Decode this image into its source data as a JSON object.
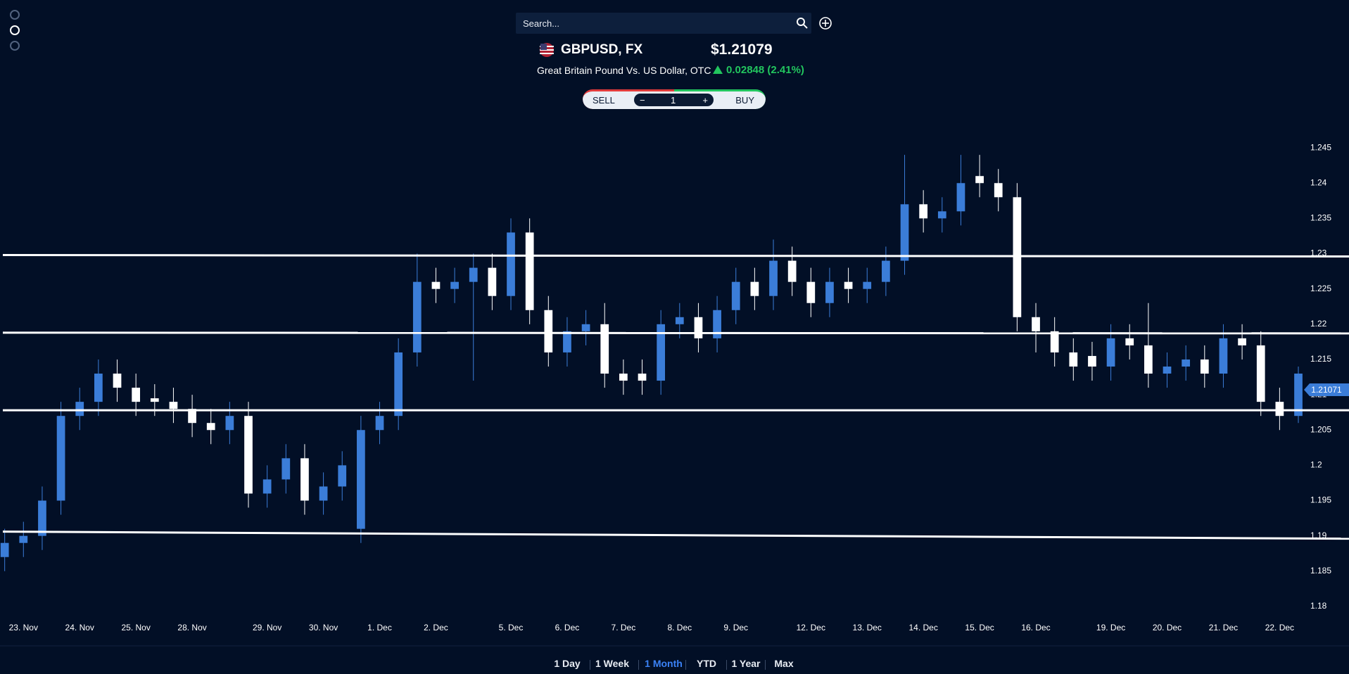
{
  "header": {
    "search_placeholder": "Search...",
    "symbol": "GBPUSD, FX",
    "price": "$1.21079",
    "description": "Great Britain Pound Vs. US Dollar, OTC",
    "change": "0.02848 (2.41%)",
    "sell": "SELL",
    "quantity": "1",
    "buy": "BUY"
  },
  "chart_data": {
    "type": "candlestick",
    "up_color": "#3b7dd8",
    "down_color": "#ffffff",
    "open": [
      1.187,
      1.189,
      1.19,
      1.195,
      1.207,
      1.209,
      1.213,
      1.211,
      1.2095,
      1.209,
      1.208,
      1.206,
      1.205,
      1.207,
      1.196,
      1.198,
      1.201,
      1.195,
      1.197,
      1.191,
      1.205,
      1.207,
      1.216,
      1.226,
      1.225,
      1.226,
      1.228,
      1.224,
      1.233,
      1.222,
      1.216,
      1.219,
      1.22,
      1.213,
      1.213,
      1.212,
      1.22,
      1.221,
      1.218,
      1.222,
      1.226,
      1.224,
      1.229,
      1.226,
      1.223,
      1.226,
      1.225,
      1.226,
      1.229,
      1.237,
      1.235,
      1.236,
      1.241,
      1.24,
      1.238,
      1.221,
      1.219,
      1.216,
      1.2155,
      1.214,
      1.218,
      1.217,
      1.213,
      1.214,
      1.215,
      1.213,
      1.218,
      1.217,
      1.209,
      1.207
    ],
    "high": [
      1.191,
      1.192,
      1.197,
      1.209,
      1.211,
      1.215,
      1.215,
      1.213,
      1.2115,
      1.211,
      1.21,
      1.208,
      1.209,
      1.209,
      1.2,
      1.203,
      1.203,
      1.199,
      1.202,
      1.207,
      1.209,
      1.218,
      1.23,
      1.228,
      1.228,
      1.23,
      1.23,
      1.235,
      1.235,
      1.224,
      1.221,
      1.222,
      1.223,
      1.215,
      1.215,
      1.222,
      1.223,
      1.223,
      1.224,
      1.228,
      1.228,
      1.232,
      1.231,
      1.228,
      1.228,
      1.228,
      1.228,
      1.231,
      1.244,
      1.239,
      1.238,
      1.244,
      1.244,
      1.242,
      1.24,
      1.223,
      1.221,
      1.218,
      1.2175,
      1.22,
      1.22,
      1.223,
      1.216,
      1.217,
      1.217,
      1.22,
      1.22,
      1.219,
      1.211,
      1.214
    ],
    "low": [
      1.185,
      1.187,
      1.188,
      1.193,
      1.205,
      1.207,
      1.209,
      1.207,
      1.207,
      1.206,
      1.204,
      1.203,
      1.203,
      1.194,
      1.194,
      1.196,
      1.193,
      1.193,
      1.195,
      1.189,
      1.203,
      1.205,
      1.214,
      1.223,
      1.223,
      1.212,
      1.222,
      1.222,
      1.22,
      1.214,
      1.214,
      1.217,
      1.211,
      1.21,
      1.21,
      1.21,
      1.218,
      1.216,
      1.216,
      1.22,
      1.222,
      1.222,
      1.224,
      1.221,
      1.221,
      1.223,
      1.223,
      1.224,
      1.227,
      1.233,
      1.233,
      1.234,
      1.238,
      1.236,
      1.219,
      1.216,
      1.214,
      1.212,
      1.212,
      1.212,
      1.215,
      1.211,
      1.211,
      1.212,
      1.211,
      1.211,
      1.215,
      1.207,
      1.205,
      1.206
    ],
    "close": [
      1.189,
      1.19,
      1.195,
      1.207,
      1.209,
      1.213,
      1.211,
      1.209,
      1.209,
      1.208,
      1.206,
      1.205,
      1.207,
      1.196,
      1.198,
      1.201,
      1.195,
      1.197,
      1.2,
      1.205,
      1.207,
      1.216,
      1.226,
      1.225,
      1.226,
      1.228,
      1.224,
      1.233,
      1.222,
      1.216,
      1.219,
      1.22,
      1.213,
      1.212,
      1.212,
      1.22,
      1.221,
      1.218,
      1.222,
      1.226,
      1.224,
      1.229,
      1.226,
      1.223,
      1.226,
      1.225,
      1.226,
      1.229,
      1.237,
      1.235,
      1.236,
      1.24,
      1.24,
      1.238,
      1.221,
      1.219,
      1.216,
      1.214,
      1.214,
      1.218,
      1.217,
      1.213,
      1.214,
      1.215,
      1.213,
      1.218,
      1.217,
      1.209,
      1.207,
      1.213
    ],
    "xlim": [
      -0.25,
      69.75
    ],
    "xticks": [
      {
        "value": 1,
        "label": "23. Nov"
      },
      {
        "value": 4,
        "label": "24. Nov"
      },
      {
        "value": 7,
        "label": "25. Nov"
      },
      {
        "value": 10,
        "label": "28. Nov"
      },
      {
        "value": 14,
        "label": "29. Nov"
      },
      {
        "value": 17,
        "label": "30. Nov"
      },
      {
        "value": 20,
        "label": "1. Dec"
      },
      {
        "value": 23,
        "label": "2. Dec"
      },
      {
        "value": 27,
        "label": "5. Dec"
      },
      {
        "value": 30,
        "label": "6. Dec"
      },
      {
        "value": 33,
        "label": "7. Dec"
      },
      {
        "value": 36,
        "label": "8. Dec"
      },
      {
        "value": 39,
        "label": "9. Dec"
      },
      {
        "value": 43,
        "label": "12. Dec"
      },
      {
        "value": 46,
        "label": "13. Dec"
      },
      {
        "value": 49,
        "label": "14. Dec"
      },
      {
        "value": 52,
        "label": "15. Dec"
      },
      {
        "value": 55,
        "label": "16. Dec"
      },
      {
        "value": 59,
        "label": "19. Dec"
      },
      {
        "value": 62,
        "label": "20. Dec"
      },
      {
        "value": 65,
        "label": "21. Dec"
      },
      {
        "value": 68,
        "label": "22. Dec"
      }
    ],
    "ylim": [
      1.1782,
      1.249
    ],
    "yticks": [
      1.18,
      1.185,
      1.19,
      1.195,
      1.2,
      1.205,
      1.21,
      1.215,
      1.22,
      1.225,
      1.23,
      1.235,
      1.24,
      1.245
    ],
    "trend_lines": [
      {
        "start": 1.2298,
        "end": 1.2296
      },
      {
        "start": 1.2188,
        "end": 1.2187
      },
      {
        "start": 1.2078,
        "end": 1.2078
      },
      {
        "start": 1.1906,
        "end": 1.1896
      }
    ],
    "last_price": 1.21071
  },
  "range_buttons": [
    "1 Day",
    "1 Week",
    "1 Month",
    "YTD",
    "1 Year",
    "Max"
  ],
  "active_range_index": 2
}
